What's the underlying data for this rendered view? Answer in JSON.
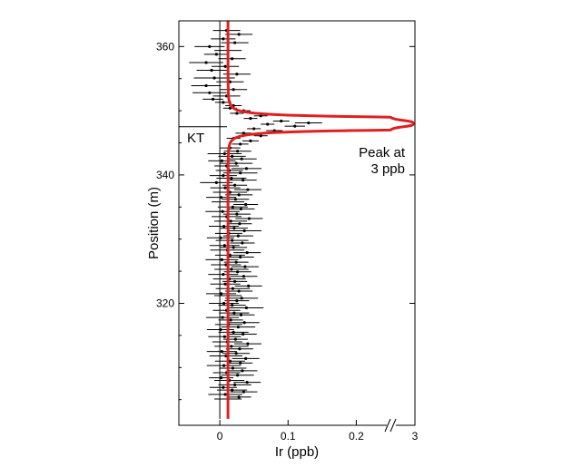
{
  "chart_data": {
    "type": "scatter",
    "xlabel": "Ir (ppb)",
    "ylabel": "Position (m)",
    "x_tick_labels": [
      "0",
      "0.1",
      "0.2",
      "3"
    ],
    "y_tick_labels": [
      "320",
      "340",
      "360"
    ],
    "x_ticks": [
      0,
      0.1,
      0.2
    ],
    "y_ticks": [
      320,
      340,
      360
    ],
    "xlim": [
      -0.06,
      0.29
    ],
    "ylim": [
      301,
      364
    ],
    "x_axis_break_at": 0.25,
    "x_axis_break_end_label": "3",
    "boundary_label": "KT",
    "boundary_position": 347.5,
    "annotation": "Peak at\n3 ppb",
    "fit_curve": {
      "baseline": 0.012,
      "peak_value": 3,
      "peak_position": 348,
      "color": "#e02020"
    },
    "points": [
      [
        0.012,
        305.1,
        0.02
      ],
      [
        0.028,
        305.4,
        0.018
      ],
      [
        0.008,
        305.8,
        0.025
      ],
      [
        0.035,
        306.2,
        0.02
      ],
      [
        0.018,
        306.5,
        0.022
      ],
      [
        0.005,
        306.9,
        0.02
      ],
      [
        0.022,
        307.3,
        0.024
      ],
      [
        0.04,
        307.7,
        0.02
      ],
      [
        0.014,
        308.0,
        0.022
      ],
      [
        0.002,
        308.4,
        0.018
      ],
      [
        0.026,
        308.8,
        0.024
      ],
      [
        0.01,
        309.2,
        0.02
      ],
      [
        0.033,
        309.5,
        0.022
      ],
      [
        0.019,
        309.9,
        0.02
      ],
      [
        0.006,
        310.3,
        0.025
      ],
      [
        0.03,
        310.7,
        0.018
      ],
      [
        0.015,
        311.0,
        0.022
      ],
      [
        0.038,
        311.4,
        0.02
      ],
      [
        0.009,
        311.8,
        0.024
      ],
      [
        0.024,
        312.2,
        0.02
      ],
      [
        0.003,
        312.5,
        0.022
      ],
      [
        0.029,
        312.9,
        0.02
      ],
      [
        0.017,
        313.3,
        0.025
      ],
      [
        0.041,
        313.7,
        0.02
      ],
      [
        0.011,
        314.0,
        0.022
      ],
      [
        0.023,
        314.4,
        0.018
      ],
      [
        0.007,
        314.8,
        0.024
      ],
      [
        0.034,
        315.2,
        0.02
      ],
      [
        0.02,
        315.5,
        0.022
      ],
      [
        0.001,
        315.9,
        0.02
      ],
      [
        0.027,
        316.3,
        0.025
      ],
      [
        0.013,
        316.7,
        0.02
      ],
      [
        0.036,
        317.0,
        0.022
      ],
      [
        0.016,
        317.4,
        0.018
      ],
      [
        0.004,
        317.8,
        0.024
      ],
      [
        0.031,
        318.2,
        0.02
      ],
      [
        0.021,
        318.5,
        0.022
      ],
      [
        0.01,
        318.9,
        0.02
      ],
      [
        0.039,
        319.3,
        0.025
      ],
      [
        0.018,
        319.7,
        0.02
      ],
      [
        0.006,
        320.0,
        0.022
      ],
      [
        0.025,
        320.4,
        0.018
      ],
      [
        0.032,
        320.8,
        0.024
      ],
      [
        0.012,
        321.2,
        0.02
      ],
      [
        0.002,
        321.5,
        0.022
      ],
      [
        0.028,
        321.9,
        0.02
      ],
      [
        0.019,
        322.3,
        0.025
      ],
      [
        0.042,
        322.7,
        0.02
      ],
      [
        0.008,
        323.0,
        0.022
      ],
      [
        0.022,
        323.4,
        0.018
      ],
      [
        0.014,
        323.8,
        0.024
      ],
      [
        0.035,
        324.2,
        0.02
      ],
      [
        0.005,
        324.5,
        0.022
      ],
      [
        0.026,
        324.9,
        0.02
      ],
      [
        0.017,
        325.3,
        0.025
      ],
      [
        0.037,
        325.7,
        0.02
      ],
      [
        0.009,
        326.0,
        0.022
      ],
      [
        0.024,
        326.4,
        0.018
      ],
      [
        0.003,
        326.8,
        0.024
      ],
      [
        0.03,
        327.2,
        0.02
      ],
      [
        0.015,
        327.5,
        0.022
      ],
      [
        0.04,
        327.9,
        0.02
      ],
      [
        0.011,
        328.3,
        0.025
      ],
      [
        0.02,
        328.7,
        0.02
      ],
      [
        0.007,
        329.0,
        0.022
      ],
      [
        0.033,
        329.4,
        0.018
      ],
      [
        0.018,
        329.8,
        0.024
      ],
      [
        0.001,
        330.2,
        0.02
      ],
      [
        0.027,
        330.5,
        0.022
      ],
      [
        0.013,
        330.9,
        0.02
      ],
      [
        0.036,
        331.3,
        0.025
      ],
      [
        0.021,
        331.7,
        0.02
      ],
      [
        0.006,
        332.0,
        0.022
      ],
      [
        0.029,
        332.4,
        0.018
      ],
      [
        0.016,
        332.8,
        0.024
      ],
      [
        0.043,
        333.2,
        0.02
      ],
      [
        0.01,
        333.5,
        0.022
      ],
      [
        0.025,
        333.9,
        0.02
      ],
      [
        0.004,
        334.3,
        0.025
      ],
      [
        0.031,
        334.7,
        0.02
      ],
      [
        0.019,
        335.0,
        0.022
      ],
      [
        0.038,
        335.4,
        0.018
      ],
      [
        0.012,
        335.8,
        0.024
      ],
      [
        0.023,
        336.2,
        0.02
      ],
      [
        0.002,
        336.5,
        0.022
      ],
      [
        0.028,
        336.9,
        0.02
      ],
      [
        0.015,
        337.3,
        0.025
      ],
      [
        0.041,
        337.7,
        0.02
      ],
      [
        0.008,
        338.0,
        0.022
      ],
      [
        0.022,
        338.4,
        0.018
      ],
      [
        -0.005,
        338.8,
        0.024
      ],
      [
        0.034,
        339.2,
        0.02
      ],
      [
        0.017,
        339.5,
        0.022
      ],
      [
        0.005,
        339.9,
        0.02
      ],
      [
        0.03,
        340.3,
        0.025
      ],
      [
        0.014,
        340.7,
        0.02
      ],
      [
        0.039,
        341.0,
        0.022
      ],
      [
        0.01,
        341.4,
        0.018
      ],
      [
        0.024,
        341.8,
        0.024
      ],
      [
        0.003,
        342.2,
        0.02
      ],
      [
        0.032,
        342.5,
        0.022
      ],
      [
        0.018,
        342.9,
        0.02
      ],
      [
        0.007,
        343.3,
        0.025
      ],
      [
        0.026,
        343.7,
        0.02
      ],
      [
        0.015,
        344.2,
        0.015
      ],
      [
        0.03,
        344.8,
        0.012
      ],
      [
        0.045,
        345.3,
        0.012
      ],
      [
        0.02,
        345.7,
        0.01
      ],
      [
        0.06,
        346.1,
        0.01
      ],
      [
        0.035,
        346.5,
        0.012
      ],
      [
        0.08,
        346.9,
        0.012
      ],
      [
        0.05,
        347.2,
        0.01
      ],
      [
        0.11,
        347.6,
        0.015
      ],
      [
        0.07,
        347.9,
        0.01
      ],
      [
        0.13,
        348.1,
        0.02
      ],
      [
        0.09,
        348.4,
        0.012
      ],
      [
        0.045,
        348.8,
        0.01
      ],
      [
        0.06,
        349.2,
        0.01
      ],
      [
        0.025,
        349.6,
        0.01
      ],
      [
        0.035,
        350.0,
        0.01
      ],
      [
        0.015,
        350.4,
        0.01
      ],
      [
        0.02,
        350.8,
        0.012
      ],
      [
        0.005,
        351.3,
        0.012
      ],
      [
        -0.01,
        351.8,
        0.015
      ],
      [
        0.01,
        352.3,
        0.02
      ],
      [
        -0.015,
        352.8,
        0.025
      ],
      [
        0.02,
        353.3,
        0.02
      ],
      [
        -0.02,
        353.9,
        0.022
      ],
      [
        0.015,
        354.5,
        0.02
      ],
      [
        -0.008,
        355.1,
        0.03
      ],
      [
        0.025,
        355.7,
        0.02
      ],
      [
        -0.012,
        356.3,
        0.022
      ],
      [
        0.008,
        356.9,
        0.02
      ],
      [
        -0.02,
        357.5,
        0.025
      ],
      [
        0.018,
        358.1,
        0.02
      ],
      [
        -0.005,
        358.8,
        0.018
      ],
      [
        0.012,
        359.4,
        0.02
      ],
      [
        -0.015,
        360.0,
        0.022
      ],
      [
        0.022,
        360.6,
        0.02
      ],
      [
        0.005,
        361.2,
        0.018
      ],
      [
        0.028,
        361.9,
        0.02
      ],
      [
        0.01,
        362.5,
        0.02
      ]
    ]
  }
}
